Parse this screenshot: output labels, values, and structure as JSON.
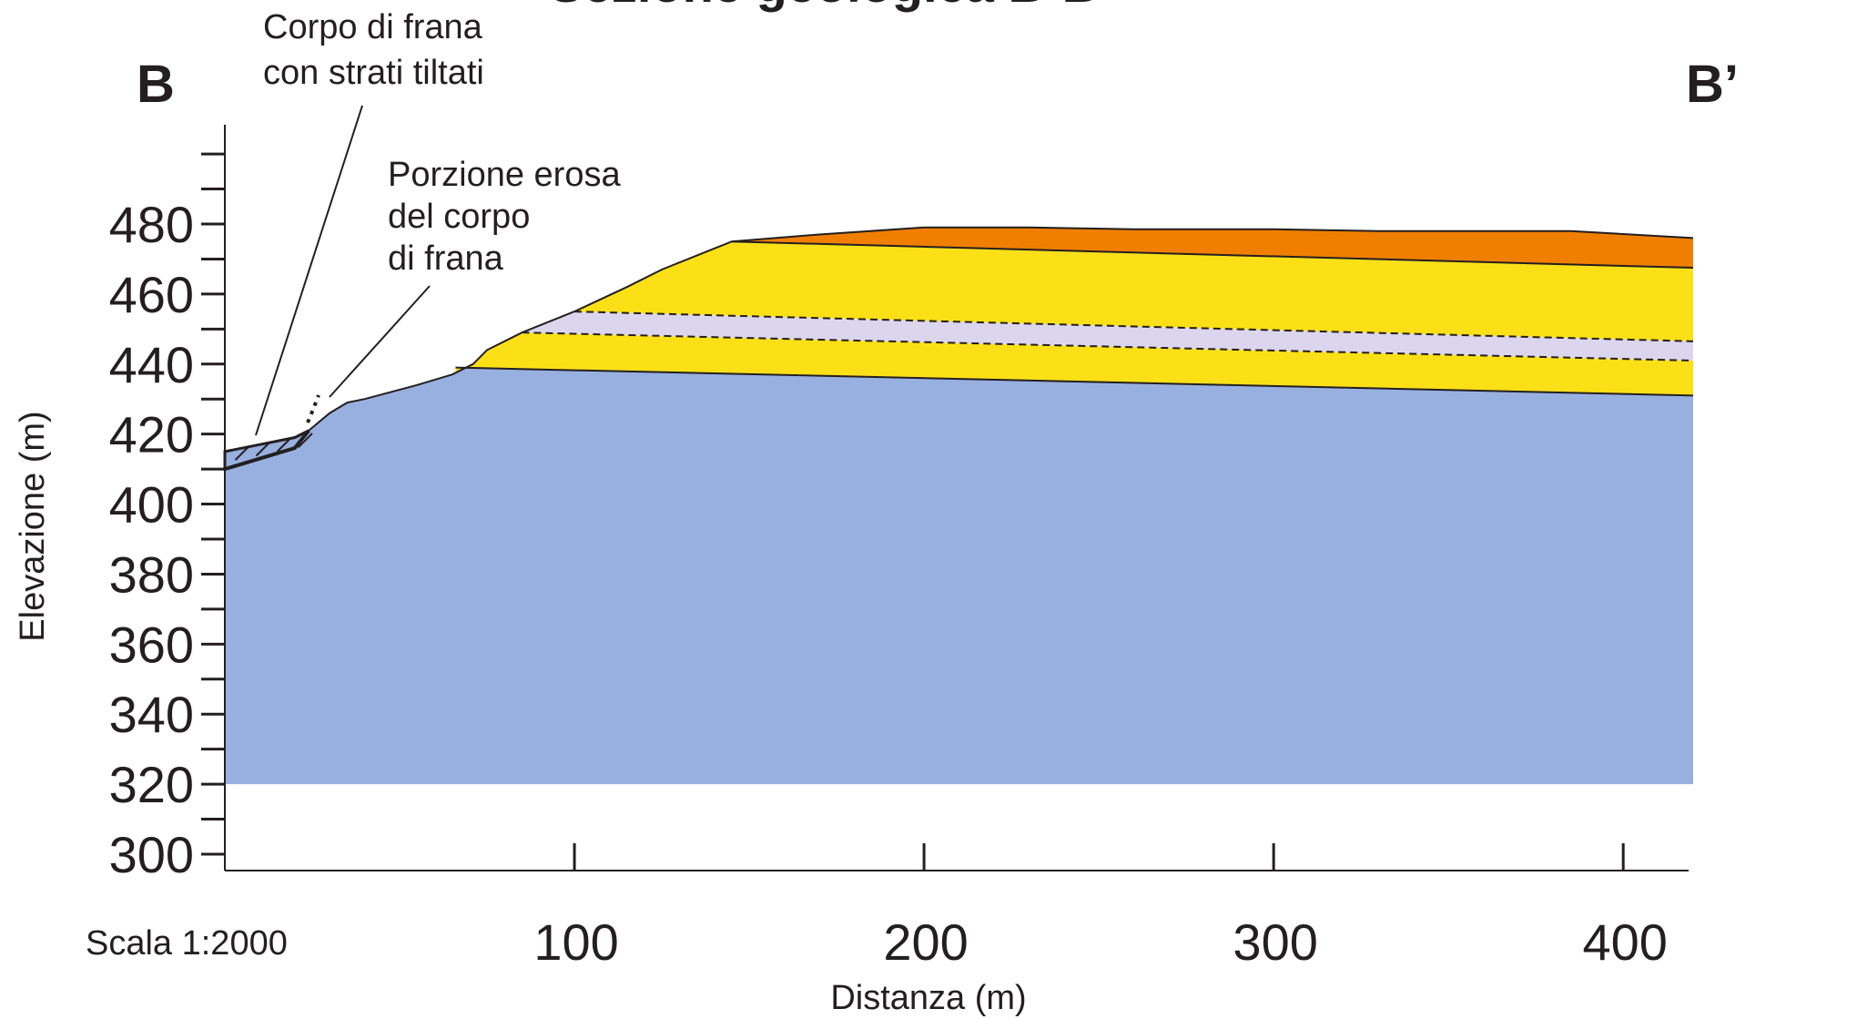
{
  "title": "Sezione geologica B-B’",
  "corner_left": "B",
  "corner_right": "B’",
  "annotations": {
    "landslide_body": [
      "Corpo di frana",
      "con strati tiltati"
    ],
    "eroded_portion": [
      "Porzione erosa",
      "del corpo",
      "di frana"
    ]
  },
  "scale_label": "Scala 1:2000",
  "axes": {
    "x_label": "Distanza (m)",
    "y_label": "Elevazione (m)",
    "x_ticks": [
      "100",
      "200",
      "300",
      "400"
    ],
    "y_ticks": [
      "480",
      "460",
      "440",
      "420",
      "400",
      "380",
      "360",
      "340",
      "320",
      "300"
    ]
  },
  "colors": {
    "bedrock": "#98b0df",
    "yellow_layer": "#fbe018",
    "lavender_layer": "#dcd5ee",
    "orange_layer": "#f07f00",
    "outline": "#231f20"
  },
  "chart_data": {
    "type": "cross-section",
    "x_range_m": [
      0,
      420
    ],
    "y_range_m": [
      295,
      508
    ],
    "surface_profile": [
      [
        0,
        415
      ],
      [
        10,
        417
      ],
      [
        20,
        419
      ],
      [
        24,
        421
      ],
      [
        30,
        426
      ],
      [
        35,
        429
      ],
      [
        40,
        430
      ],
      [
        55,
        434
      ],
      [
        65,
        437
      ],
      [
        71,
        440
      ],
      [
        75,
        444
      ],
      [
        85,
        449
      ],
      [
        100,
        455
      ],
      [
        115,
        462
      ],
      [
        125,
        467
      ],
      [
        135,
        471
      ],
      [
        145,
        475
      ],
      [
        170,
        477
      ],
      [
        200,
        479
      ],
      [
        230,
        479
      ],
      [
        260,
        478.5
      ],
      [
        300,
        478.5
      ],
      [
        330,
        478
      ],
      [
        360,
        478
      ],
      [
        385,
        478
      ],
      [
        420,
        476
      ]
    ],
    "layer_boundaries": [
      {
        "name": "orange-base",
        "points": [
          [
            145,
            475
          ],
          [
            420,
            467.5
          ]
        ]
      },
      {
        "name": "lavender-top",
        "points": [
          [
            100,
            455
          ],
          [
            420,
            446.5
          ]
        ]
      },
      {
        "name": "lavender-base",
        "points": [
          [
            85,
            449
          ],
          [
            420,
            441
          ]
        ]
      },
      {
        "name": "yellow-base",
        "points": [
          [
            66,
            439
          ],
          [
            420,
            431
          ]
        ]
      }
    ],
    "section_base": 320
  }
}
